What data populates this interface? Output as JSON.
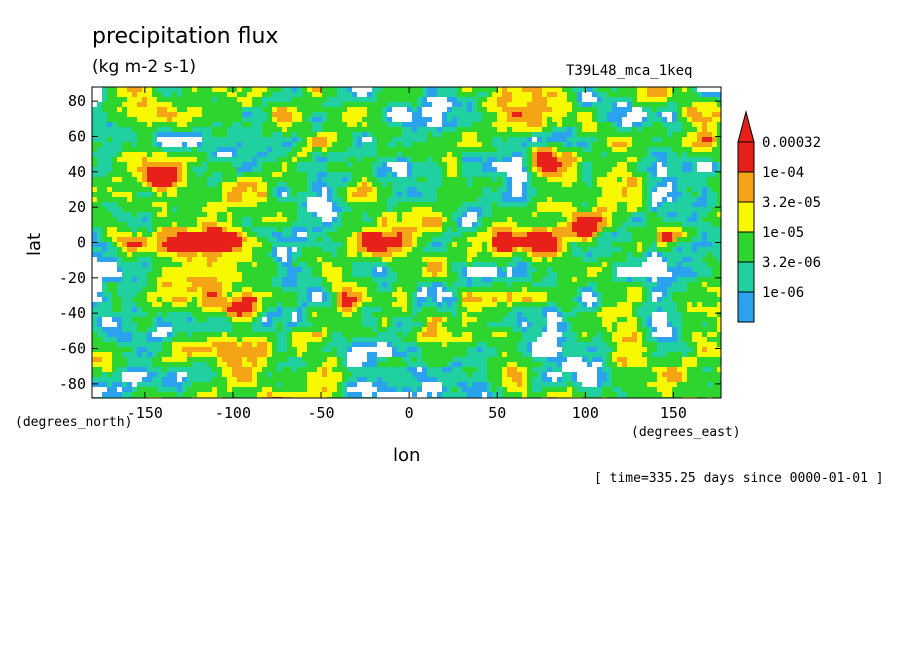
{
  "chart_data": {
    "type": "heatmap",
    "title": "precipitation flux",
    "units": "(kg m-2 s-1)",
    "run_label": "T39L48_mca_1keq",
    "xlabel": "lon",
    "ylabel": "lat",
    "x_units": "(degrees_east)",
    "y_units": "(degrees_north)",
    "time_label": "[ time=335.25 days since 0000-01-01 ]",
    "xlim": [
      -180,
      177
    ],
    "ylim": [
      -88,
      88
    ],
    "x_ticks": [
      {
        "value": -150,
        "label": "-150"
      },
      {
        "value": -100,
        "label": "-100"
      },
      {
        "value": -50,
        "label": "-50"
      },
      {
        "value": 0,
        "label": "0"
      },
      {
        "value": 50,
        "label": "50"
      },
      {
        "value": 100,
        "label": "100"
      },
      {
        "value": 150,
        "label": "150"
      }
    ],
    "y_ticks": [
      {
        "value": 80,
        "label": "80"
      },
      {
        "value": 60,
        "label": "60"
      },
      {
        "value": 40,
        "label": "40"
      },
      {
        "value": 20,
        "label": "20"
      },
      {
        "value": 0,
        "label": "0"
      },
      {
        "value": -20,
        "label": "-20"
      },
      {
        "value": -40,
        "label": "-40"
      },
      {
        "value": -60,
        "label": "-60"
      },
      {
        "value": -80,
        "label": "-80"
      }
    ],
    "colorbar": {
      "levels": [
        {
          "label": "0.00032",
          "color": "#e8201a"
        },
        {
          "label": "1e-04",
          "color": "#f5a416"
        },
        {
          "label": "3.2e-05",
          "color": "#f8f800"
        },
        {
          "label": "1e-05",
          "color": "#2fd52f"
        },
        {
          "label": "3.2e-06",
          "color": "#21d0a0"
        },
        {
          "label": "1e-06",
          "color": "#2aa2ee"
        }
      ],
      "extend": "max"
    },
    "peaks": [
      {
        "lon": -158,
        "lat": 0
      },
      {
        "lon": -126,
        "lat": 0
      },
      {
        "lon": -102,
        "lat": 2
      },
      {
        "lon": -20,
        "lat": 0
      },
      {
        "lon": 55,
        "lat": 0
      },
      {
        "lon": 75,
        "lat": 0
      },
      {
        "lon": 100,
        "lat": 7
      },
      {
        "lon": 145,
        "lat": 3
      },
      {
        "lon": -95,
        "lat": -38
      },
      {
        "lon": -140,
        "lat": 37
      },
      {
        "lon": 78,
        "lat": 50
      },
      {
        "lon": -35,
        "lat": -32
      }
    ]
  }
}
